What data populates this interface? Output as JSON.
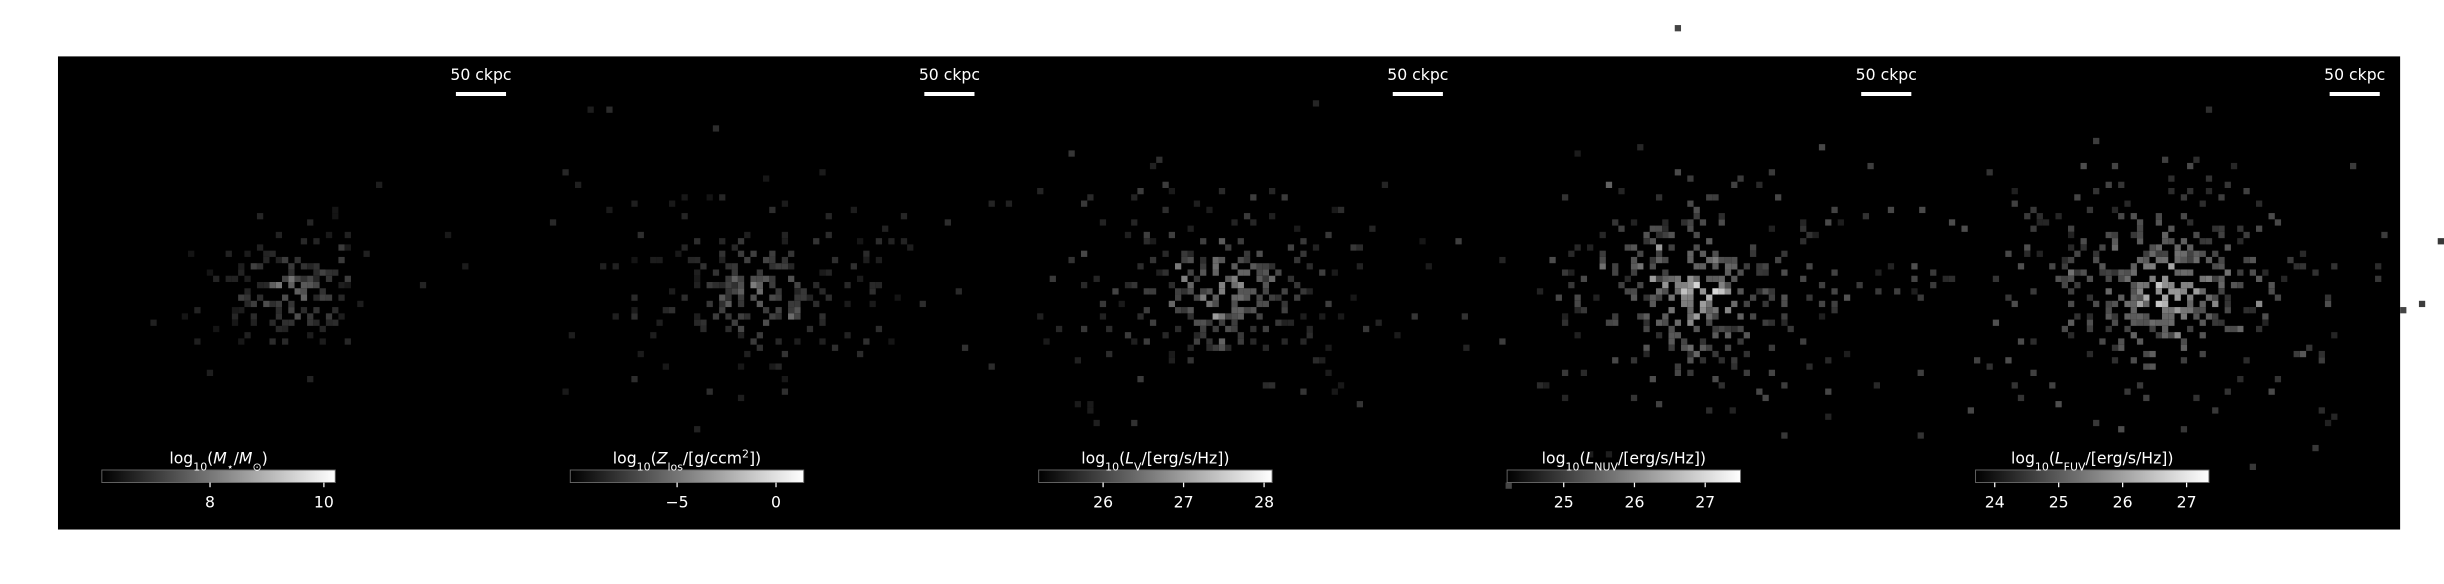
{
  "panels": [
    {
      "scale_bar": "50 ckpc",
      "colorbar": {
        "label": [
          "log",
          "10",
          "(",
          "M",
          "⋆",
          "/",
          "M",
          "⊙",
          ")"
        ],
        "lim": [
          6.1,
          10.2
        ],
        "ticks": [
          8,
          10
        ]
      }
    },
    {
      "scale_bar": "50 ckpc",
      "colorbar": {
        "label": [
          "log",
          "10",
          "(",
          "Z",
          "los",
          "/[g/ccm",
          "2",
          "])"
        ],
        "lim": [
          -10.4,
          1.4
        ],
        "ticks": [
          {
            "value": -5,
            "label": "−5"
          },
          0
        ]
      }
    },
    {
      "scale_bar": "50 ckpc",
      "colorbar": {
        "label": [
          "log",
          "10",
          "(",
          "L",
          "V",
          "/[erg/s/Hz])"
        ],
        "lim": [
          25.2,
          28.1
        ],
        "ticks": [
          26,
          27,
          28
        ]
      }
    },
    {
      "scale_bar": "50 ckpc",
      "colorbar": {
        "label": [
          "log",
          "10",
          "(",
          "L",
          "NUV",
          "/[erg/s/Hz])"
        ],
        "lim": [
          24.2,
          27.5
        ],
        "ticks": [
          25,
          26,
          27
        ]
      }
    },
    {
      "scale_bar": "50 ckpc",
      "colorbar": {
        "label": [
          "log",
          "10",
          "(",
          "L",
          "FUV",
          "/[erg/s/Hz])"
        ],
        "lim": [
          23.7,
          27.35
        ],
        "ticks": [
          24,
          25,
          26,
          27
        ]
      }
    }
  ]
}
